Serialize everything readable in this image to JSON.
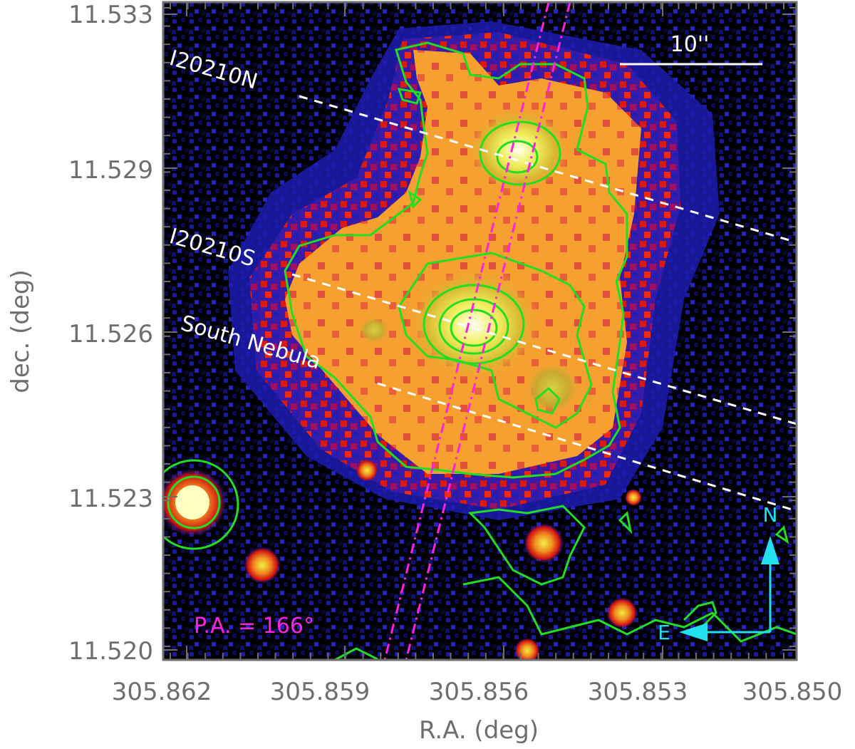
{
  "axes": {
    "xlabel": "R.A. (deg)",
    "ylabel": "dec. (deg)",
    "x_ticks": [
      "305.862",
      "305.859",
      "305.856",
      "305.853",
      "305.850"
    ],
    "y_ticks": [
      "11.533",
      "11.529",
      "11.526",
      "11.523",
      "11.520"
    ]
  },
  "labels": {
    "north_source": "I20210N",
    "south_source": "I20210S",
    "nebula": "South Nebula",
    "scale_bar": "10''",
    "position_angle": "P.A. = 166°",
    "compass_north": "N",
    "compass_east": "E"
  },
  "colors": {
    "background": "#000000",
    "contour": "#22dd22",
    "slit": "#ff22dd",
    "compass": "#22e0ee",
    "annotation": "#ffffff",
    "axis_text": "#6e6e6e"
  }
}
